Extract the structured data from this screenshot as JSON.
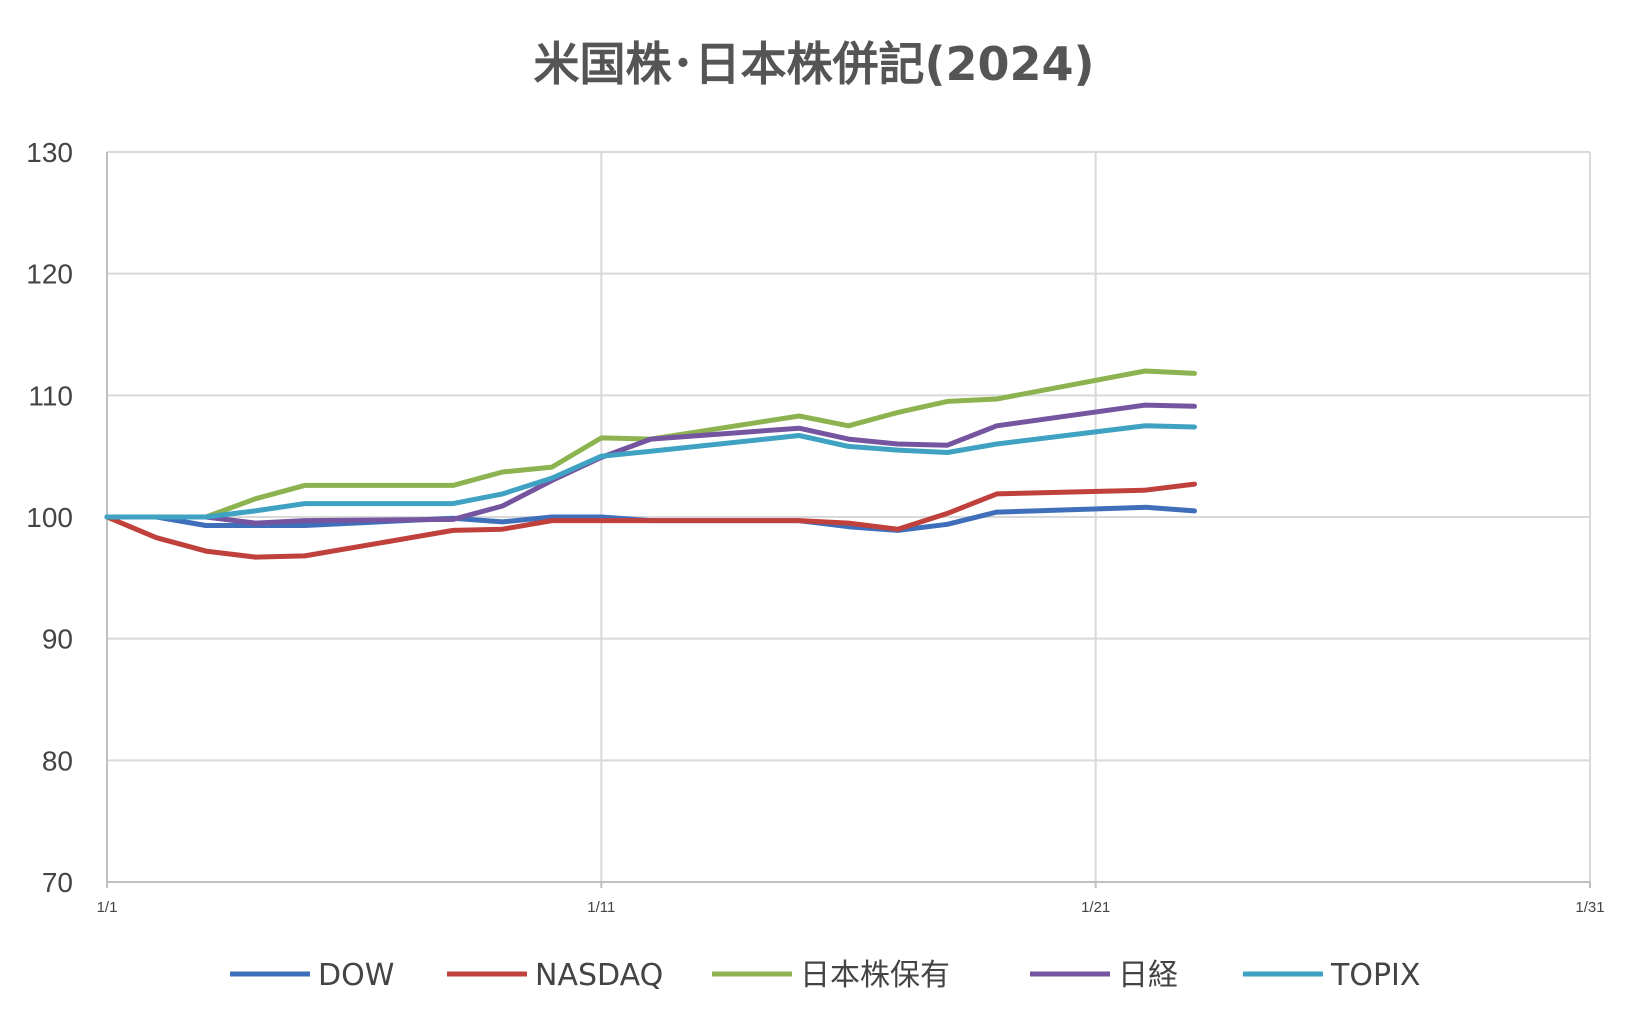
{
  "chart_data": {
    "type": "line",
    "title": "米国株･日本株併記(2024)",
    "xlabel": "",
    "ylabel": "",
    "xlim": [
      1,
      31
    ],
    "ylim": [
      70,
      130
    ],
    "x_ticks": [
      1,
      11,
      21,
      31
    ],
    "x_tick_labels": [
      "1/1",
      "1/11",
      "1/21",
      "1/31"
    ],
    "y_ticks": [
      70,
      80,
      90,
      100,
      110,
      120,
      130
    ],
    "y_tick_labels": [
      "70",
      "80",
      "90",
      "100",
      "110",
      "120",
      "130"
    ],
    "grid": true,
    "legend_position": "bottom",
    "series": [
      {
        "name": "DOW",
        "color": "#3f6fba",
        "x": [
          1,
          2,
          3,
          4,
          5,
          8,
          9,
          10,
          11,
          12,
          15,
          16,
          17,
          18,
          19,
          22,
          23
        ],
        "values": [
          100,
          100,
          99.3,
          99.3,
          99.3,
          99.9,
          99.6,
          100,
          100,
          99.7,
          99.7,
          99.2,
          98.9,
          99.4,
          100.4,
          100.8,
          100.5
        ]
      },
      {
        "name": "NASDAQ",
        "color": "#c0403c",
        "x": [
          1,
          2,
          3,
          4,
          5,
          8,
          9,
          10,
          11,
          12,
          15,
          16,
          17,
          18,
          19,
          22,
          23
        ],
        "values": [
          100,
          98.3,
          97.2,
          96.7,
          96.8,
          98.9,
          99,
          99.7,
          99.7,
          99.7,
          99.7,
          99.5,
          99,
          100.3,
          101.9,
          102.2,
          102.7
        ]
      },
      {
        "name": "日本株保有",
        "color": "#8cb34f",
        "x": [
          1,
          2,
          3,
          4,
          5,
          8,
          9,
          10,
          11,
          12,
          15,
          16,
          17,
          18,
          19,
          22,
          23
        ],
        "values": [
          100,
          100,
          100,
          101.5,
          102.6,
          102.6,
          103.7,
          104.1,
          106.5,
          106.4,
          108.3,
          107.5,
          108.6,
          109.5,
          109.7,
          112,
          111.8
        ]
      },
      {
        "name": "日経",
        "color": "#7655a0",
        "x": [
          1,
          2,
          3,
          4,
          5,
          8,
          9,
          10,
          11,
          12,
          15,
          16,
          17,
          18,
          19,
          22,
          23
        ],
        "values": [
          100,
          100,
          100,
          99.5,
          99.7,
          99.8,
          100.9,
          103,
          104.9,
          106.4,
          107.3,
          106.4,
          106,
          105.9,
          107.5,
          109.2,
          109.1
        ]
      },
      {
        "name": "TOPIX",
        "color": "#3fa2c2",
        "x": [
          1,
          2,
          3,
          4,
          5,
          8,
          9,
          10,
          11,
          12,
          15,
          16,
          17,
          18,
          19,
          22,
          23
        ],
        "values": [
          100,
          100,
          100,
          100.5,
          101.1,
          101.1,
          101.9,
          103.2,
          105,
          105.4,
          106.7,
          105.8,
          105.5,
          105.3,
          106,
          107.5,
          107.4
        ]
      }
    ]
  }
}
